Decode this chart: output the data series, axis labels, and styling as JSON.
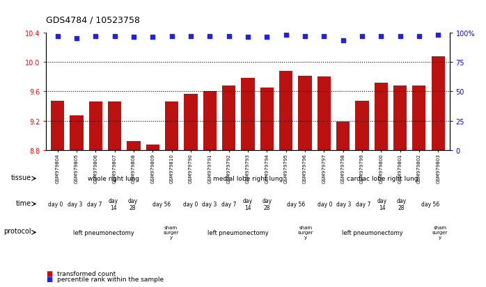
{
  "title": "GDS4784 / 10523758",
  "samples": [
    "GSM979804",
    "GSM979805",
    "GSM979806",
    "GSM979807",
    "GSM979808",
    "GSM979809",
    "GSM979810",
    "GSM979790",
    "GSM979791",
    "GSM979792",
    "GSM979793",
    "GSM979794",
    "GSM979795",
    "GSM979796",
    "GSM979797",
    "GSM979798",
    "GSM979799",
    "GSM979800",
    "GSM979801",
    "GSM979802",
    "GSM979803"
  ],
  "bar_values": [
    9.47,
    9.27,
    9.46,
    9.46,
    8.93,
    8.88,
    9.46,
    9.57,
    9.6,
    9.68,
    9.78,
    9.65,
    9.88,
    9.81,
    9.8,
    9.19,
    9.47,
    9.72,
    9.68,
    9.68,
    10.08
  ],
  "percentile_values": [
    97,
    95,
    97,
    97,
    96,
    96,
    97,
    97,
    97,
    97,
    96,
    96,
    98,
    97,
    97,
    93,
    97,
    97,
    97,
    97,
    98
  ],
  "ylim_left": [
    8.8,
    10.4
  ],
  "ylim_right": [
    0,
    100
  ],
  "yticks_left": [
    8.8,
    9.2,
    9.6,
    10.0,
    10.4
  ],
  "yticks_right": [
    0,
    25,
    50,
    75,
    100
  ],
  "dotted_lines": [
    9.2,
    9.6,
    10.0
  ],
  "bar_color": "#bb1111",
  "dot_color": "#2222dd",
  "tissue_groups": [
    {
      "label": "whole right lung",
      "start": 0,
      "end": 6,
      "color": "#c8eec8"
    },
    {
      "label": "medial lobe right lung",
      "start": 7,
      "end": 13,
      "color": "#99dd99"
    },
    {
      "label": "cardiac lobe right lung",
      "start": 14,
      "end": 20,
      "color": "#33cc33"
    }
  ],
  "time_cells": [
    {
      "label": "day 0",
      "start": 0,
      "end": 0,
      "color": "#ddddff"
    },
    {
      "label": "day 3",
      "start": 1,
      "end": 1,
      "color": "#ddddff"
    },
    {
      "label": "day 7",
      "start": 2,
      "end": 2,
      "color": "#ddddff"
    },
    {
      "label": "day\n14",
      "start": 3,
      "end": 3,
      "color": "#aaaadd"
    },
    {
      "label": "day\n28",
      "start": 4,
      "end": 4,
      "color": "#aaaadd"
    },
    {
      "label": "day 56",
      "start": 5,
      "end": 6,
      "color": "#7777cc"
    },
    {
      "label": "day 0",
      "start": 7,
      "end": 7,
      "color": "#ddddff"
    },
    {
      "label": "day 3",
      "start": 8,
      "end": 8,
      "color": "#ddddff"
    },
    {
      "label": "day 7",
      "start": 9,
      "end": 9,
      "color": "#ddddff"
    },
    {
      "label": "day\n14",
      "start": 10,
      "end": 10,
      "color": "#aaaadd"
    },
    {
      "label": "day\n28",
      "start": 11,
      "end": 11,
      "color": "#aaaadd"
    },
    {
      "label": "day 56",
      "start": 12,
      "end": 13,
      "color": "#7777cc"
    },
    {
      "label": "day 0",
      "start": 14,
      "end": 14,
      "color": "#ddddff"
    },
    {
      "label": "day 3",
      "start": 15,
      "end": 15,
      "color": "#ddddff"
    },
    {
      "label": "day 7",
      "start": 16,
      "end": 16,
      "color": "#ddddff"
    },
    {
      "label": "day\n14",
      "start": 17,
      "end": 17,
      "color": "#aaaadd"
    },
    {
      "label": "day\n28",
      "start": 18,
      "end": 18,
      "color": "#aaaadd"
    },
    {
      "label": "day 56",
      "start": 19,
      "end": 20,
      "color": "#7777cc"
    }
  ],
  "protocol_groups": [
    {
      "label": "left pneumonectomy",
      "start": 0,
      "end": 5,
      "color": "#ffbbbb"
    },
    {
      "label": "sham\nsurger\ny",
      "start": 6,
      "end": 6,
      "color": "#dd8888"
    },
    {
      "label": "left pneumonectomy",
      "start": 7,
      "end": 12,
      "color": "#ffbbbb"
    },
    {
      "label": "sham\nsurger\ny",
      "start": 13,
      "end": 13,
      "color": "#dd8888"
    },
    {
      "label": "left pneumonectomy",
      "start": 14,
      "end": 19,
      "color": "#ffbbbb"
    },
    {
      "label": "sham\nsurger\ny",
      "start": 20,
      "end": 20,
      "color": "#dd8888"
    }
  ],
  "legend_items": [
    {
      "label": "transformed count",
      "color": "#bb1111"
    },
    {
      "label": "percentile rank within the sample",
      "color": "#2222dd"
    }
  ]
}
